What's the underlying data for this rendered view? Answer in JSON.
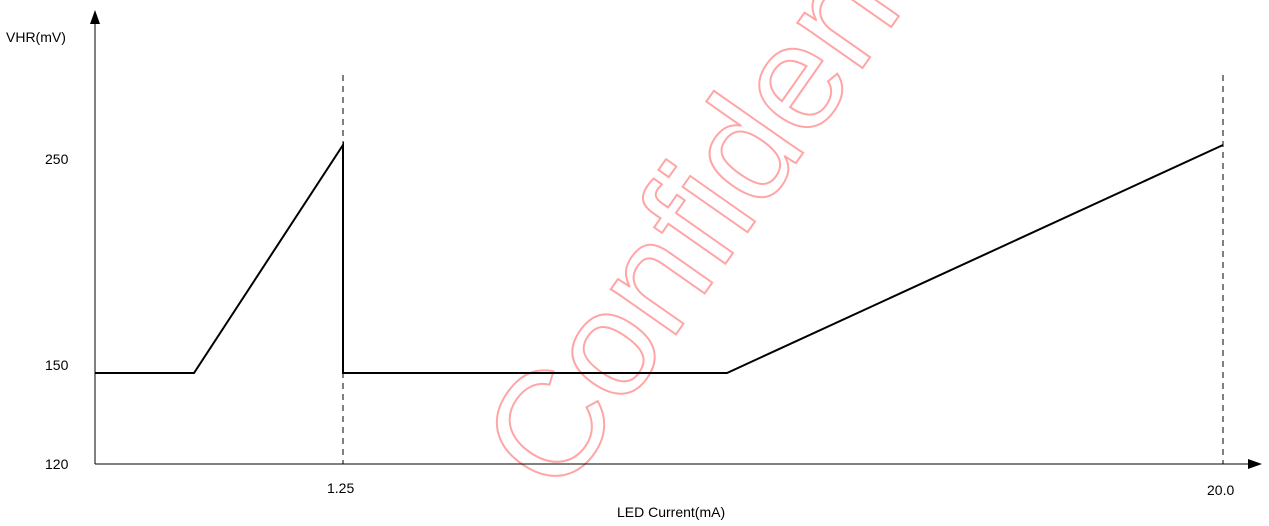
{
  "watermark": {
    "text": "Confidential",
    "color": "#ff0000"
  },
  "chart_data": {
    "type": "line",
    "title": "",
    "ylabel": "VHR(mV)",
    "xlabel": "LED Current(mA)",
    "y_ticks": [
      "250",
      "150",
      "120"
    ],
    "x_ticks": [
      "1.25",
      "20.0"
    ],
    "marker_lines_at": [
      "1.25",
      "20.0"
    ],
    "series": [
      {
        "values_mV": [
          150,
          150,
          260,
          260,
          150,
          150,
          260
        ],
        "segments": [
          "flat 150 mV from start",
          "rises to ~260 mV at 1.25 mA",
          "drops to 150 mV at 1.25 mA",
          "flat 150 mV",
          "rises to ~260 mV at 20.0 mA"
        ]
      }
    ],
    "grid": false,
    "line_color": "#000000"
  }
}
